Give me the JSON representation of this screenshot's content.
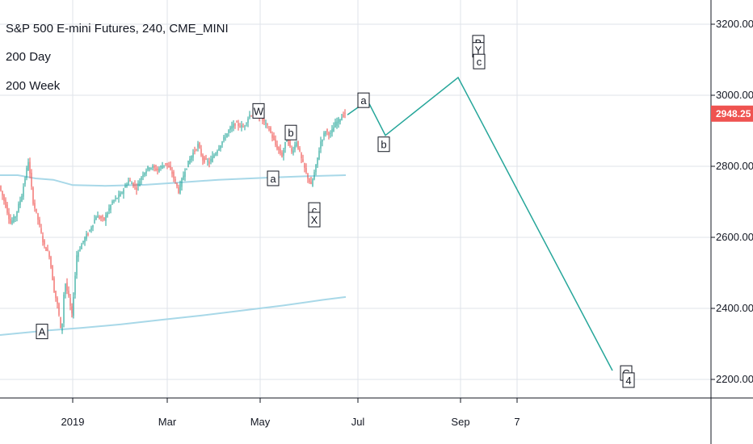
{
  "header": {
    "title": "S&P 500 E-mini Futures, 240, CME_MINI",
    "indicators": [
      "200 Day",
      "200 Week"
    ]
  },
  "colors": {
    "up": "#26a69a",
    "down": "#ef5350",
    "ma": "#a8d8e8",
    "projection": "#26a69a",
    "price_tag": "#ef5350",
    "grid": "#dfe3ea",
    "axis": "#131722"
  },
  "chart_data": {
    "type": "line",
    "title": "S&P 500 E-mini Futures, 240, CME_MINI",
    "xlabel": "",
    "ylabel": "",
    "x_ticks": [
      "2019",
      "Mar",
      "May",
      "Jul",
      "Sep",
      "7"
    ],
    "y_ticks": [
      "3200.00",
      "3000.00",
      "2800.00",
      "2600.00",
      "2400.00",
      "2200.00"
    ],
    "ylim": [
      2175,
      3230
    ],
    "last_price": "2948.25",
    "series": [
      {
        "name": "200 Day",
        "points": [
          [
            0,
            2775
          ],
          [
            22,
            2775
          ],
          [
            44,
            2766
          ],
          [
            66,
            2762
          ],
          [
            90,
            2747
          ],
          [
            130,
            2745
          ],
          [
            180,
            2748
          ],
          [
            220,
            2754
          ],
          [
            270,
            2762
          ],
          [
            330,
            2768
          ],
          [
            380,
            2772
          ],
          [
            428,
            2775
          ]
        ]
      },
      {
        "name": "200 Week",
        "points": [
          [
            0,
            2325
          ],
          [
            60,
            2338
          ],
          [
            100,
            2345
          ],
          [
            150,
            2355
          ],
          [
            200,
            2368
          ],
          [
            250,
            2380
          ],
          [
            300,
            2394
          ],
          [
            350,
            2408
          ],
          [
            400,
            2424
          ],
          [
            428,
            2432
          ]
        ]
      }
    ],
    "projection": [
      [
        430,
        2945
      ],
      [
        455,
        2985
      ],
      [
        477,
        2887
      ],
      [
        567,
        3050
      ],
      [
        758,
        2225
      ]
    ],
    "wave_labels": [
      {
        "text": "A",
        "x": 52,
        "price": 2335
      },
      {
        "text": "W",
        "x": 320,
        "price": 2956
      },
      {
        "text": "b",
        "x": 360,
        "price": 2895
      },
      {
        "text": "a",
        "x": 338,
        "price": 2766
      },
      {
        "text": "c",
        "x": 389,
        "price": 2677
      },
      {
        "text": "X",
        "x": 389,
        "price": 2650
      },
      {
        "text": "a",
        "x": 450,
        "price": 2986
      },
      {
        "text": "b",
        "x": 475,
        "price": 2862
      },
      {
        "text": "B",
        "x": 592,
        "price": 3148
      },
      {
        "text": "Y",
        "x": 592,
        "price": 3128
      },
      {
        "text": "c",
        "x": 593,
        "price": 3095
      },
      {
        "text": "C",
        "x": 775,
        "price": 2218
      },
      {
        "text": "4",
        "x": 778,
        "price": 2198
      }
    ]
  }
}
